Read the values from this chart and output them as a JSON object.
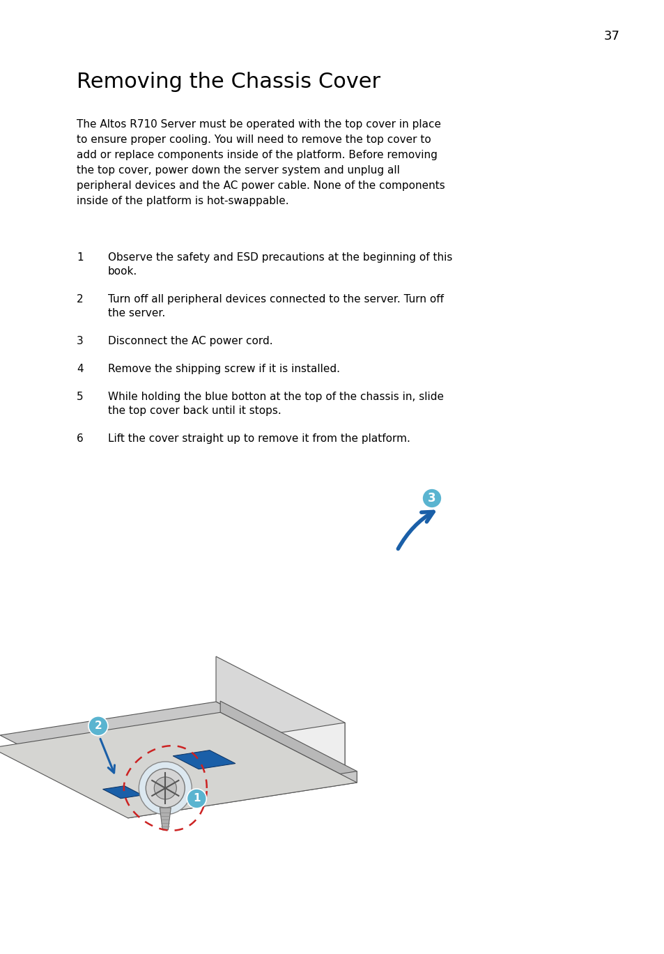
{
  "page_number": "37",
  "title": "Removing the Chassis Cover",
  "intro_text": "The Altos R710 Server must be operated with the top cover in place\nto ensure proper cooling. You will need to remove the top cover to\nadd or replace components inside of the platform. Before removing\nthe top cover, power down the server system and unplug all\nperipheral devices and the AC power cable. None of the components\ninside of the platform is hot-swappable.",
  "steps": [
    {
      "num": "1",
      "text": "Observe the safety and ESD precautions at the beginning of this\nbook."
    },
    {
      "num": "2",
      "text": "Turn off all peripheral devices connected to the server. Turn off\nthe server."
    },
    {
      "num": "3",
      "text": "Disconnect the AC power cord."
    },
    {
      "num": "4",
      "text": "Remove the shipping screw if it is installed."
    },
    {
      "num": "5",
      "text": "While holding the blue botton at the top of the chassis in, slide\nthe top cover back until it stops."
    },
    {
      "num": "6",
      "text": "Lift the cover straight up to remove it from the platform."
    }
  ],
  "background_color": "#ffffff",
  "text_color": "#000000",
  "title_color": "#000000",
  "page_num_color": "#000000",
  "blue_circle_color": "#5ab4d0",
  "blue_arrow_color": "#1a5fa8",
  "red_dashed_color": "#cc2222",
  "cover_top_color": "#d0d0cf",
  "cover_side_color": "#b0b0b0",
  "chassis_top_color": "#c8c8c8",
  "chassis_front_color": "#e8e8e8",
  "chassis_side_color": "#d0d0d0",
  "chassis_edge_color": "#555555",
  "screw_bg_color": "#dce8f0",
  "screw_head_color": "#c0c0c0",
  "blue_button_color": "#1a5fa8"
}
